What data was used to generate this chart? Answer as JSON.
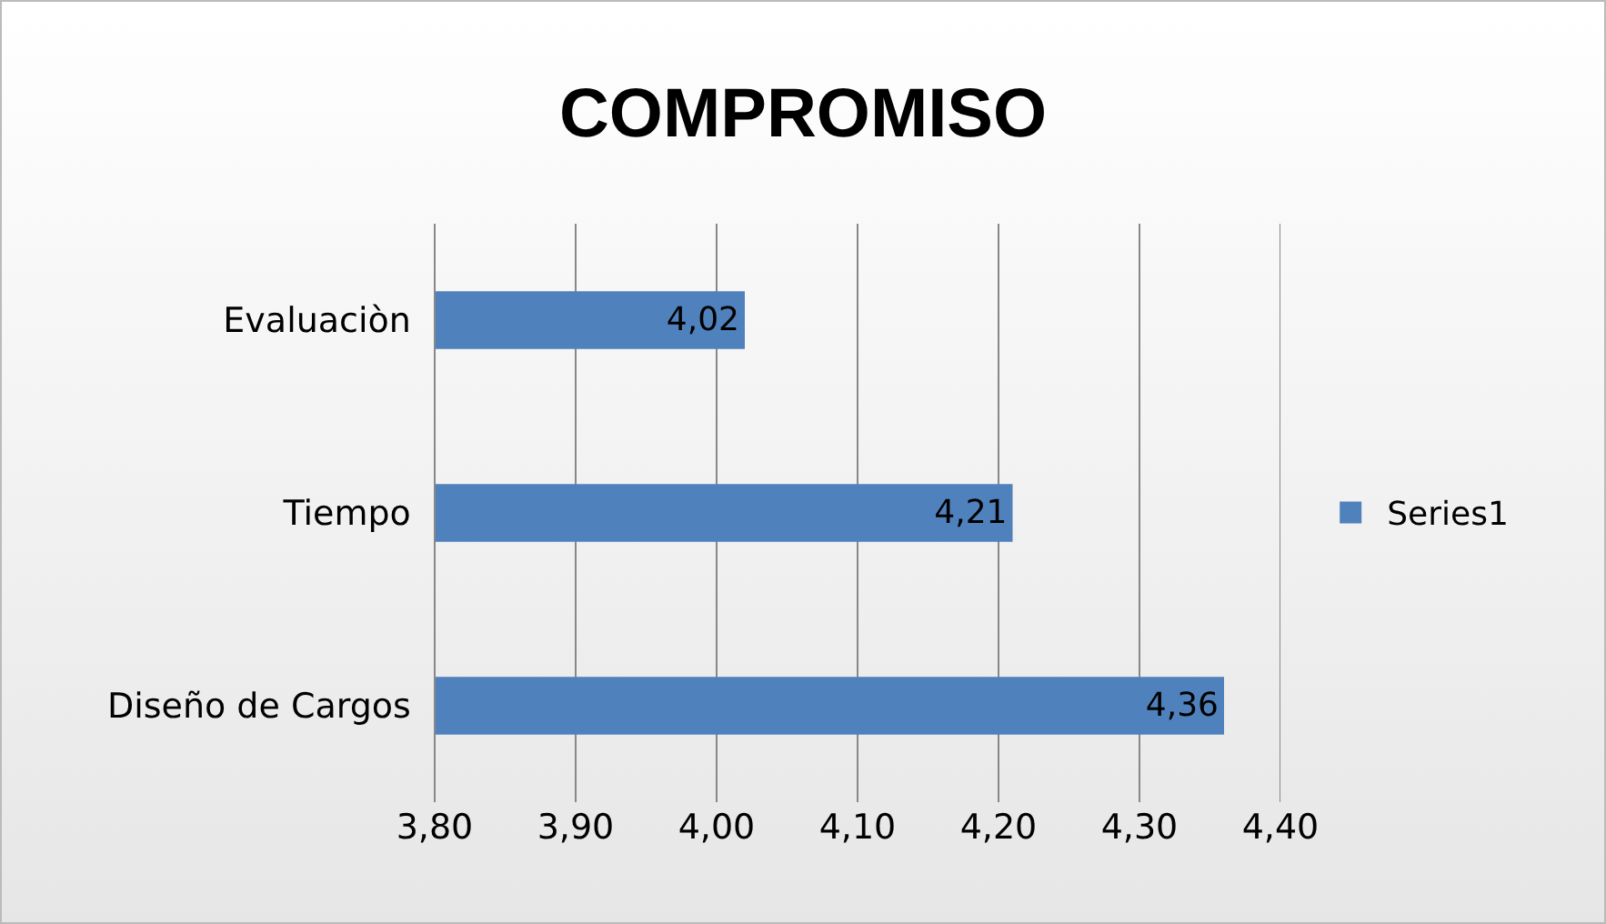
{
  "chart_data": {
    "type": "bar",
    "orientation": "horizontal",
    "title": "COMPROMISO",
    "categories": [
      "Evaluaciòn",
      "Tiempo",
      "Diseño de Cargos"
    ],
    "series": [
      {
        "name": "Series1",
        "color": "#4f81bd",
        "values": [
          4.02,
          4.21,
          4.36
        ],
        "value_labels": [
          "4,02",
          "4,21",
          "4,36"
        ]
      }
    ],
    "xlim": [
      3.8,
      4.4
    ],
    "xticks": [
      {
        "value": 3.8,
        "label": "3,80"
      },
      {
        "value": 3.9,
        "label": "3,90"
      },
      {
        "value": 4.0,
        "label": "4,00"
      },
      {
        "value": 4.1,
        "label": "4,10"
      },
      {
        "value": 4.2,
        "label": "4,20"
      },
      {
        "value": 4.3,
        "label": "4,30"
      },
      {
        "value": 4.4,
        "label": "4,40"
      }
    ],
    "grid": "x",
    "legend": "right"
  }
}
